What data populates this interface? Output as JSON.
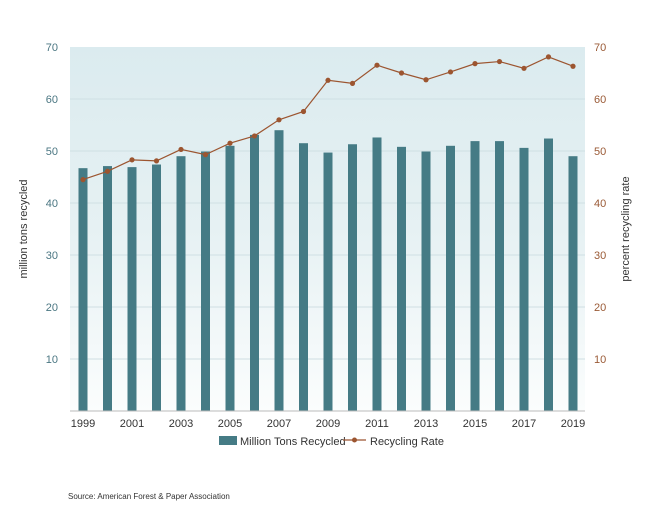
{
  "chart_data": {
    "type": "bar",
    "title": "",
    "categories": [
      "1999",
      "2000",
      "2001",
      "2002",
      "2003",
      "2004",
      "2005",
      "2006",
      "2007",
      "2008",
      "2009",
      "2010",
      "2011",
      "2012",
      "2013",
      "2014",
      "2015",
      "2016",
      "2017",
      "2018",
      "2019"
    ],
    "x_tick_labels": [
      "1999",
      "2001",
      "2003",
      "2005",
      "2007",
      "2009",
      "2011",
      "2013",
      "2015",
      "2017",
      "2019"
    ],
    "series": [
      {
        "name": "Million Tons Recycled",
        "type": "bar",
        "axis": "left",
        "color": "#457b85",
        "values": [
          46.7,
          47.1,
          46.9,
          47.4,
          49.0,
          49.9,
          51.0,
          53.1,
          54.0,
          51.5,
          49.7,
          51.3,
          52.6,
          50.8,
          49.9,
          51.0,
          51.9,
          51.9,
          50.6,
          52.4,
          49.0
        ]
      },
      {
        "name": "Recycling Rate",
        "type": "line",
        "axis": "right",
        "color": "#9c5530",
        "values": [
          44.5,
          46.1,
          48.3,
          48.1,
          50.3,
          49.3,
          51.5,
          52.9,
          56.0,
          57.6,
          63.6,
          63.0,
          66.5,
          65.0,
          63.7,
          65.2,
          66.8,
          67.2,
          65.9,
          68.1,
          66.3
        ]
      }
    ],
    "ylabel": "million tons recycled",
    "y2label": "percent recycling rate",
    "ylim": [
      0,
      70
    ],
    "y2lim": [
      0,
      70
    ],
    "y_ticks": [
      10,
      20,
      30,
      40,
      50,
      60,
      70
    ],
    "grid": true,
    "legend": "bottom",
    "source": "Source: American Forest & Paper Association"
  }
}
